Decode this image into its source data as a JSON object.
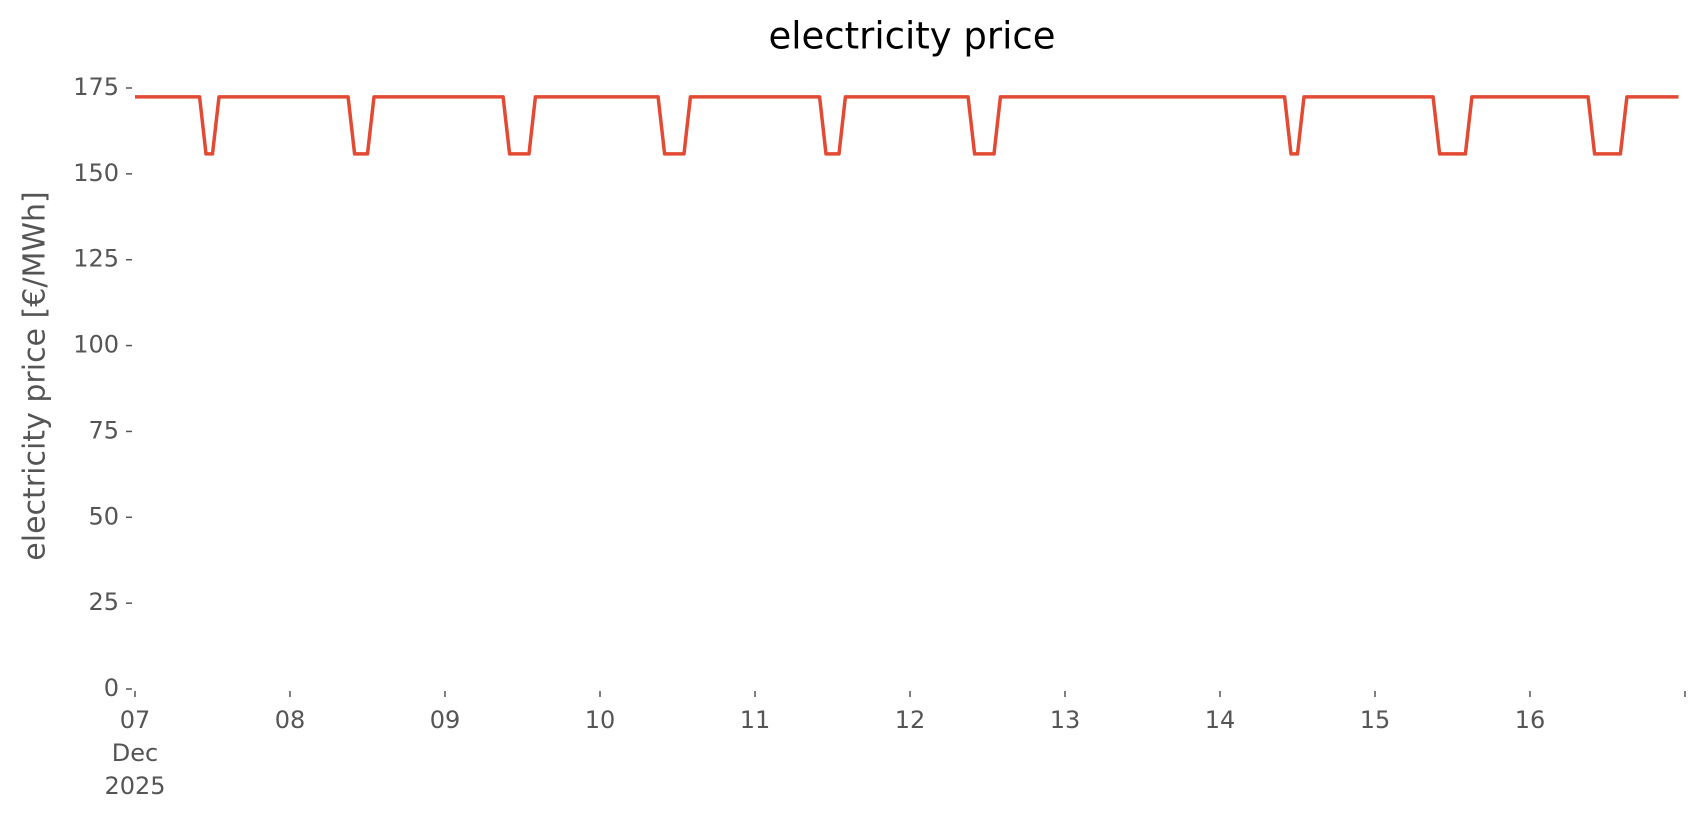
{
  "chart_data": {
    "type": "line",
    "title": "electricity price",
    "ylabel": "electricity price [€/MWh]",
    "x": [
      "2025-12-07 00:00",
      "2025-12-07 10:00",
      "2025-12-07 11:00",
      "2025-12-07 12:00",
      "2025-12-07 13:00",
      "2025-12-08 09:00",
      "2025-12-08 10:00",
      "2025-12-08 12:00",
      "2025-12-08 13:00",
      "2025-12-09 09:00",
      "2025-12-09 10:00",
      "2025-12-09 13:00",
      "2025-12-09 14:00",
      "2025-12-10 09:00",
      "2025-12-10 10:00",
      "2025-12-10 13:00",
      "2025-12-10 14:00",
      "2025-12-11 10:00",
      "2025-12-11 11:00",
      "2025-12-11 13:00",
      "2025-12-11 14:00",
      "2025-12-12 09:00",
      "2025-12-12 10:00",
      "2025-12-12 13:00",
      "2025-12-12 14:00",
      "2025-12-14 10:00",
      "2025-12-14 11:00",
      "2025-12-14 12:00",
      "2025-12-14 13:00",
      "2025-12-15 09:00",
      "2025-12-15 10:00",
      "2025-12-15 14:00",
      "2025-12-15 15:00",
      "2025-12-16 09:00",
      "2025-12-16 10:00",
      "2025-12-16 14:00",
      "2025-12-16 15:00",
      "2025-12-16 23:00"
    ],
    "values": [
      172.4,
      172.4,
      155.8,
      155.8,
      172.4,
      172.4,
      155.8,
      155.8,
      172.4,
      172.4,
      155.8,
      155.8,
      172.4,
      172.4,
      155.8,
      155.8,
      172.4,
      172.4,
      155.8,
      155.8,
      172.4,
      172.4,
      155.8,
      155.8,
      172.4,
      172.4,
      155.8,
      155.8,
      172.4,
      172.4,
      155.8,
      155.8,
      172.4,
      172.4,
      155.8,
      155.8,
      172.4,
      172.4
    ],
    "color": "#e24a33",
    "xlim": [
      "2025-12-07 00:00",
      "2025-12-17 00:00"
    ],
    "xticks": [
      {
        "value": "2025-12-07 00:00",
        "label": "07\nDec\n2025"
      },
      {
        "value": "2025-12-08 00:00",
        "label": "08"
      },
      {
        "value": "2025-12-09 00:00",
        "label": "09"
      },
      {
        "value": "2025-12-10 00:00",
        "label": "10"
      },
      {
        "value": "2025-12-11 00:00",
        "label": "11"
      },
      {
        "value": "2025-12-12 00:00",
        "label": "12"
      },
      {
        "value": "2025-12-13 00:00",
        "label": "13"
      },
      {
        "value": "2025-12-14 00:00",
        "label": "14"
      },
      {
        "value": "2025-12-15 00:00",
        "label": "15"
      },
      {
        "value": "2025-12-16 00:00",
        "label": "16"
      },
      {
        "value": "2025-12-17 00:00",
        "label": null
      }
    ],
    "ylim": [
      0,
      175
    ],
    "yticks": [
      0,
      25,
      50,
      75,
      100,
      125,
      150,
      175
    ],
    "grid": false
  }
}
